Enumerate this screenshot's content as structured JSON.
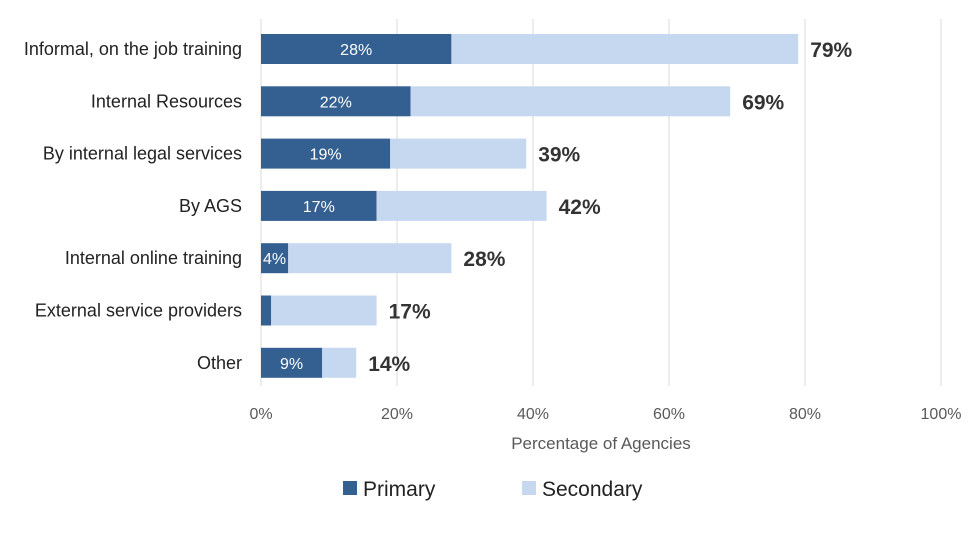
{
  "chart_data": {
    "type": "bar",
    "orientation": "horizontal",
    "stacked": true,
    "categories": [
      "Informal, on the job training",
      "Internal Resources",
      "By internal legal services",
      "By AGS",
      "Internal online training",
      "External service providers",
      "Other"
    ],
    "series": [
      {
        "name": "Primary",
        "color": "#335f91",
        "values": [
          28,
          22,
          19,
          17,
          4,
          1.5,
          9
        ],
        "labels": [
          "28%",
          "22%",
          "19%",
          "17%",
          "4%",
          "",
          "9%"
        ]
      },
      {
        "name": "Secondary",
        "color": "#c6d8f0",
        "values": [
          51,
          47,
          20,
          25,
          24,
          15.5,
          5
        ]
      }
    ],
    "totals": [
      "79%",
      "69%",
      "39%",
      "42%",
      "28%",
      "17%",
      "14%"
    ],
    "xlabel": "Percentage of Agencies",
    "ylabel": "",
    "xlim": [
      0,
      100
    ],
    "xticks": [
      "0%",
      "20%",
      "40%",
      "60%",
      "80%",
      "100%"
    ],
    "grid": "vertical",
    "legend": "bottom"
  }
}
